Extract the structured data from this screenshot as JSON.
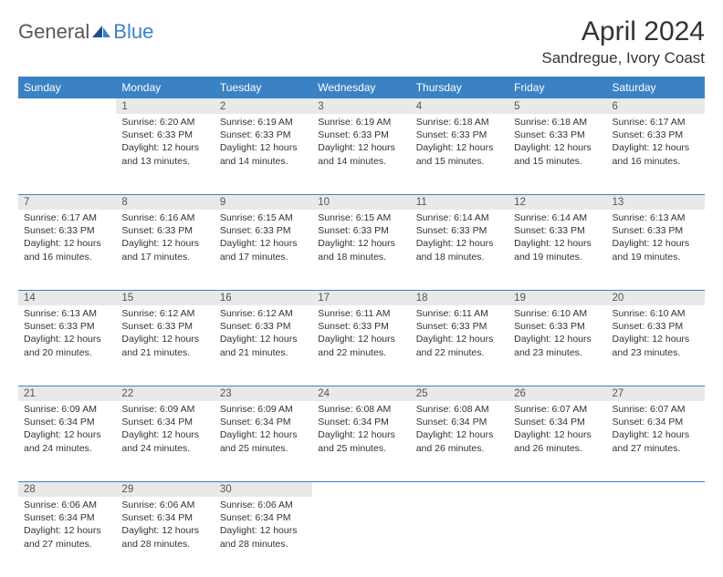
{
  "brand": {
    "part1": "General",
    "part2": "Blue"
  },
  "title": "April 2024",
  "location": "Sandregue, Ivory Coast",
  "colors": {
    "header_bg": "#3b82c4",
    "header_text": "#ffffff",
    "daynum_bg": "#e9e9e9",
    "page_bg": "#ffffff",
    "text": "#333333",
    "logo_gray": "#585858",
    "logo_blue": "#3b82c4",
    "row_divider": "#3b82c4"
  },
  "typography": {
    "title_fontsize": 30,
    "location_fontsize": 17,
    "header_fontsize": 12,
    "daynum_fontsize": 11.5,
    "cell_fontsize": 10.5
  },
  "dow": [
    "Sunday",
    "Monday",
    "Tuesday",
    "Wednesday",
    "Thursday",
    "Friday",
    "Saturday"
  ],
  "weeks": [
    [
      null,
      {
        "n": "1",
        "sr": "Sunrise: 6:20 AM",
        "ss": "Sunset: 6:33 PM",
        "d1": "Daylight: 12 hours",
        "d2": "and 13 minutes."
      },
      {
        "n": "2",
        "sr": "Sunrise: 6:19 AM",
        "ss": "Sunset: 6:33 PM",
        "d1": "Daylight: 12 hours",
        "d2": "and 14 minutes."
      },
      {
        "n": "3",
        "sr": "Sunrise: 6:19 AM",
        "ss": "Sunset: 6:33 PM",
        "d1": "Daylight: 12 hours",
        "d2": "and 14 minutes."
      },
      {
        "n": "4",
        "sr": "Sunrise: 6:18 AM",
        "ss": "Sunset: 6:33 PM",
        "d1": "Daylight: 12 hours",
        "d2": "and 15 minutes."
      },
      {
        "n": "5",
        "sr": "Sunrise: 6:18 AM",
        "ss": "Sunset: 6:33 PM",
        "d1": "Daylight: 12 hours",
        "d2": "and 15 minutes."
      },
      {
        "n": "6",
        "sr": "Sunrise: 6:17 AM",
        "ss": "Sunset: 6:33 PM",
        "d1": "Daylight: 12 hours",
        "d2": "and 16 minutes."
      }
    ],
    [
      {
        "n": "7",
        "sr": "Sunrise: 6:17 AM",
        "ss": "Sunset: 6:33 PM",
        "d1": "Daylight: 12 hours",
        "d2": "and 16 minutes."
      },
      {
        "n": "8",
        "sr": "Sunrise: 6:16 AM",
        "ss": "Sunset: 6:33 PM",
        "d1": "Daylight: 12 hours",
        "d2": "and 17 minutes."
      },
      {
        "n": "9",
        "sr": "Sunrise: 6:15 AM",
        "ss": "Sunset: 6:33 PM",
        "d1": "Daylight: 12 hours",
        "d2": "and 17 minutes."
      },
      {
        "n": "10",
        "sr": "Sunrise: 6:15 AM",
        "ss": "Sunset: 6:33 PM",
        "d1": "Daylight: 12 hours",
        "d2": "and 18 minutes."
      },
      {
        "n": "11",
        "sr": "Sunrise: 6:14 AM",
        "ss": "Sunset: 6:33 PM",
        "d1": "Daylight: 12 hours",
        "d2": "and 18 minutes."
      },
      {
        "n": "12",
        "sr": "Sunrise: 6:14 AM",
        "ss": "Sunset: 6:33 PM",
        "d1": "Daylight: 12 hours",
        "d2": "and 19 minutes."
      },
      {
        "n": "13",
        "sr": "Sunrise: 6:13 AM",
        "ss": "Sunset: 6:33 PM",
        "d1": "Daylight: 12 hours",
        "d2": "and 19 minutes."
      }
    ],
    [
      {
        "n": "14",
        "sr": "Sunrise: 6:13 AM",
        "ss": "Sunset: 6:33 PM",
        "d1": "Daylight: 12 hours",
        "d2": "and 20 minutes."
      },
      {
        "n": "15",
        "sr": "Sunrise: 6:12 AM",
        "ss": "Sunset: 6:33 PM",
        "d1": "Daylight: 12 hours",
        "d2": "and 21 minutes."
      },
      {
        "n": "16",
        "sr": "Sunrise: 6:12 AM",
        "ss": "Sunset: 6:33 PM",
        "d1": "Daylight: 12 hours",
        "d2": "and 21 minutes."
      },
      {
        "n": "17",
        "sr": "Sunrise: 6:11 AM",
        "ss": "Sunset: 6:33 PM",
        "d1": "Daylight: 12 hours",
        "d2": "and 22 minutes."
      },
      {
        "n": "18",
        "sr": "Sunrise: 6:11 AM",
        "ss": "Sunset: 6:33 PM",
        "d1": "Daylight: 12 hours",
        "d2": "and 22 minutes."
      },
      {
        "n": "19",
        "sr": "Sunrise: 6:10 AM",
        "ss": "Sunset: 6:33 PM",
        "d1": "Daylight: 12 hours",
        "d2": "and 23 minutes."
      },
      {
        "n": "20",
        "sr": "Sunrise: 6:10 AM",
        "ss": "Sunset: 6:33 PM",
        "d1": "Daylight: 12 hours",
        "d2": "and 23 minutes."
      }
    ],
    [
      {
        "n": "21",
        "sr": "Sunrise: 6:09 AM",
        "ss": "Sunset: 6:34 PM",
        "d1": "Daylight: 12 hours",
        "d2": "and 24 minutes."
      },
      {
        "n": "22",
        "sr": "Sunrise: 6:09 AM",
        "ss": "Sunset: 6:34 PM",
        "d1": "Daylight: 12 hours",
        "d2": "and 24 minutes."
      },
      {
        "n": "23",
        "sr": "Sunrise: 6:09 AM",
        "ss": "Sunset: 6:34 PM",
        "d1": "Daylight: 12 hours",
        "d2": "and 25 minutes."
      },
      {
        "n": "24",
        "sr": "Sunrise: 6:08 AM",
        "ss": "Sunset: 6:34 PM",
        "d1": "Daylight: 12 hours",
        "d2": "and 25 minutes."
      },
      {
        "n": "25",
        "sr": "Sunrise: 6:08 AM",
        "ss": "Sunset: 6:34 PM",
        "d1": "Daylight: 12 hours",
        "d2": "and 26 minutes."
      },
      {
        "n": "26",
        "sr": "Sunrise: 6:07 AM",
        "ss": "Sunset: 6:34 PM",
        "d1": "Daylight: 12 hours",
        "d2": "and 26 minutes."
      },
      {
        "n": "27",
        "sr": "Sunrise: 6:07 AM",
        "ss": "Sunset: 6:34 PM",
        "d1": "Daylight: 12 hours",
        "d2": "and 27 minutes."
      }
    ],
    [
      {
        "n": "28",
        "sr": "Sunrise: 6:06 AM",
        "ss": "Sunset: 6:34 PM",
        "d1": "Daylight: 12 hours",
        "d2": "and 27 minutes."
      },
      {
        "n": "29",
        "sr": "Sunrise: 6:06 AM",
        "ss": "Sunset: 6:34 PM",
        "d1": "Daylight: 12 hours",
        "d2": "and 28 minutes."
      },
      {
        "n": "30",
        "sr": "Sunrise: 6:06 AM",
        "ss": "Sunset: 6:34 PM",
        "d1": "Daylight: 12 hours",
        "d2": "and 28 minutes."
      },
      null,
      null,
      null,
      null
    ]
  ]
}
